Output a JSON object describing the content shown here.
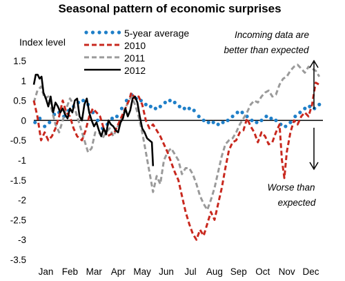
{
  "chart_data": {
    "type": "line",
    "title": "Seasonal pattern of economic surprises",
    "ylabel": "Index level",
    "xlabel": "",
    "ylim": [
      -3.5,
      1.5
    ],
    "y_ticks": [
      "1.5",
      "1",
      "0.5",
      "0",
      "-0.5",
      "-1",
      "-1.5",
      "-2",
      "-2.5",
      "-3",
      "-3.5"
    ],
    "y_tick_values": [
      1.5,
      1,
      0.5,
      0,
      -0.5,
      -1,
      -1.5,
      -2,
      -2.5,
      -3,
      -3.5
    ],
    "x_unit": "month (1 = start of Jan, 13 = end of Dec)",
    "xlim": [
      1,
      13
    ],
    "categories": [
      "Jan",
      "Feb",
      "Mar",
      "Apr",
      "May",
      "Jun",
      "Jul",
      "Aug",
      "Sep",
      "Oct",
      "Nov",
      "Dec"
    ],
    "legend_position": "top-center",
    "annotations": {
      "better": [
        "Incoming data are",
        "better than expected"
      ],
      "worse": [
        "Worse than",
        "expected"
      ]
    },
    "series": [
      {
        "name": "5-year average",
        "color": "#1f7fc8",
        "style": "dots",
        "points": [
          [
            1.05,
            -0.05
          ],
          [
            1.25,
            0.05
          ],
          [
            1.45,
            -0.15
          ],
          [
            1.65,
            -0.05
          ],
          [
            1.85,
            0.15
          ],
          [
            2.05,
            0.2
          ],
          [
            2.25,
            0.1
          ],
          [
            2.45,
            0.25
          ],
          [
            2.65,
            0.35
          ],
          [
            2.85,
            0.45
          ],
          [
            3.05,
            0.5
          ],
          [
            3.25,
            0.4
          ],
          [
            3.45,
            0.2
          ],
          [
            3.65,
            0.0
          ],
          [
            3.85,
            -0.2
          ],
          [
            4.05,
            -0.1
          ],
          [
            4.25,
            0.05
          ],
          [
            4.45,
            0.1
          ],
          [
            4.65,
            0.3
          ],
          [
            4.85,
            0.5
          ],
          [
            5.05,
            0.65
          ],
          [
            5.25,
            0.55
          ],
          [
            5.45,
            0.5
          ],
          [
            5.65,
            0.4
          ],
          [
            5.85,
            0.35
          ],
          [
            6.05,
            0.3
          ],
          [
            6.25,
            0.35
          ],
          [
            6.45,
            0.45
          ],
          [
            6.65,
            0.5
          ],
          [
            6.85,
            0.45
          ],
          [
            7.05,
            0.35
          ],
          [
            7.25,
            0.3
          ],
          [
            7.45,
            0.3
          ],
          [
            7.65,
            0.25
          ],
          [
            7.85,
            0.1
          ],
          [
            8.05,
            0.0
          ],
          [
            8.25,
            -0.05
          ],
          [
            8.45,
            -0.05
          ],
          [
            8.65,
            -0.1
          ],
          [
            8.85,
            -0.05
          ],
          [
            9.05,
            0.0
          ],
          [
            9.25,
            0.1
          ],
          [
            9.45,
            0.2
          ],
          [
            9.65,
            0.2
          ],
          [
            9.85,
            0.1
          ],
          [
            10.05,
            0.0
          ],
          [
            10.25,
            -0.05
          ],
          [
            10.45,
            0.0
          ],
          [
            10.65,
            0.1
          ],
          [
            10.85,
            0.05
          ],
          [
            11.05,
            0.0
          ],
          [
            11.25,
            -0.1
          ],
          [
            11.45,
            -0.15
          ],
          [
            11.65,
            -0.05
          ],
          [
            11.85,
            0.1
          ],
          [
            12.05,
            0.2
          ],
          [
            12.25,
            0.3
          ],
          [
            12.45,
            0.35
          ],
          [
            12.65,
            0.3
          ],
          [
            12.85,
            0.4
          ]
        ]
      },
      {
        "name": "2010",
        "color": "#c8281e",
        "style": "dashed",
        "points": [
          [
            1.0,
            0.5
          ],
          [
            1.15,
            0.1
          ],
          [
            1.3,
            -0.5
          ],
          [
            1.45,
            -0.3
          ],
          [
            1.6,
            -0.5
          ],
          [
            1.75,
            -0.4
          ],
          [
            1.9,
            -0.2
          ],
          [
            2.05,
            0.1
          ],
          [
            2.2,
            0.5
          ],
          [
            2.35,
            0.2
          ],
          [
            2.5,
            0.1
          ],
          [
            2.65,
            -0.2
          ],
          [
            2.8,
            -0.4
          ],
          [
            3.0,
            -0.5
          ],
          [
            3.15,
            -0.25
          ],
          [
            3.3,
            0.1
          ],
          [
            3.45,
            0.3
          ],
          [
            3.6,
            0.2
          ],
          [
            3.75,
            0.1
          ],
          [
            3.9,
            -0.2
          ],
          [
            4.05,
            -0.4
          ],
          [
            4.2,
            -0.35
          ],
          [
            4.35,
            -0.3
          ],
          [
            4.5,
            -0.1
          ],
          [
            4.65,
            0.1
          ],
          [
            4.8,
            0.3
          ],
          [
            4.95,
            0.5
          ],
          [
            5.05,
            0.7
          ],
          [
            5.2,
            0.55
          ],
          [
            5.35,
            0.6
          ],
          [
            5.5,
            0.4
          ],
          [
            5.65,
            0.0
          ],
          [
            5.8,
            -0.2
          ],
          [
            5.95,
            -0.1
          ],
          [
            6.1,
            -0.25
          ],
          [
            6.25,
            -0.4
          ],
          [
            6.4,
            -0.6
          ],
          [
            6.55,
            -0.8
          ],
          [
            6.7,
            -1.05
          ],
          [
            6.85,
            -1.3
          ],
          [
            7.0,
            -1.5
          ],
          [
            7.15,
            -1.9
          ],
          [
            7.3,
            -2.3
          ],
          [
            7.45,
            -2.6
          ],
          [
            7.6,
            -2.85
          ],
          [
            7.75,
            -3.0
          ],
          [
            7.9,
            -2.75
          ],
          [
            8.05,
            -2.9
          ],
          [
            8.2,
            -2.6
          ],
          [
            8.35,
            -2.3
          ],
          [
            8.5,
            -2.5
          ],
          [
            8.65,
            -2.1
          ],
          [
            8.8,
            -1.7
          ],
          [
            8.95,
            -1.2
          ],
          [
            9.1,
            -0.75
          ],
          [
            9.25,
            -0.55
          ],
          [
            9.4,
            -0.5
          ],
          [
            9.55,
            -0.3
          ],
          [
            9.7,
            -0.25
          ],
          [
            9.85,
            0.05
          ],
          [
            10.0,
            -0.15
          ],
          [
            10.15,
            -0.3
          ],
          [
            10.3,
            -0.55
          ],
          [
            10.45,
            -0.3
          ],
          [
            10.6,
            -0.4
          ],
          [
            10.75,
            -0.6
          ],
          [
            10.9,
            -0.55
          ],
          [
            11.05,
            -0.3
          ],
          [
            11.2,
            -0.1
          ],
          [
            11.3,
            -1.0
          ],
          [
            11.4,
            -1.45
          ],
          [
            11.5,
            -0.8
          ],
          [
            11.65,
            -0.3
          ],
          [
            11.8,
            0.0
          ],
          [
            11.95,
            -0.1
          ],
          [
            12.1,
            0.1
          ],
          [
            12.25,
            0.2
          ],
          [
            12.4,
            0.1
          ],
          [
            12.55,
            0.4
          ],
          [
            12.7,
            0.95
          ],
          [
            12.85,
            0.9
          ]
        ]
      },
      {
        "name": "2011",
        "color": "#9a9a9a",
        "style": "dashed",
        "points": [
          [
            1.0,
            0.45
          ],
          [
            1.15,
            0.75
          ],
          [
            1.3,
            0.85
          ],
          [
            1.45,
            0.55
          ],
          [
            1.6,
            0.6
          ],
          [
            1.75,
            0.25
          ],
          [
            1.9,
            -0.1
          ],
          [
            2.05,
            -0.3
          ],
          [
            2.2,
            0.0
          ],
          [
            2.35,
            0.3
          ],
          [
            2.5,
            0.55
          ],
          [
            2.65,
            0.4
          ],
          [
            2.8,
            0.1
          ],
          [
            2.95,
            -0.2
          ],
          [
            3.1,
            -0.5
          ],
          [
            3.25,
            -0.8
          ],
          [
            3.4,
            -0.7
          ],
          [
            3.55,
            -0.3
          ],
          [
            3.7,
            -0.3
          ],
          [
            3.85,
            -0.45
          ],
          [
            4.0,
            -0.3
          ],
          [
            4.15,
            -0.2
          ],
          [
            4.3,
            -0.4
          ],
          [
            4.45,
            -0.2
          ],
          [
            4.6,
            0.0
          ],
          [
            4.75,
            0.2
          ],
          [
            4.9,
            0.45
          ],
          [
            5.05,
            0.6
          ],
          [
            5.2,
            0.4
          ],
          [
            5.35,
            0.1
          ],
          [
            5.5,
            -0.3
          ],
          [
            5.65,
            -0.8
          ],
          [
            5.8,
            -1.3
          ],
          [
            5.95,
            -1.8
          ],
          [
            6.1,
            -1.4
          ],
          [
            6.25,
            -1.6
          ],
          [
            6.4,
            -1.0
          ],
          [
            6.55,
            -0.8
          ],
          [
            6.7,
            -0.7
          ],
          [
            6.85,
            -0.85
          ],
          [
            7.0,
            -1.0
          ],
          [
            7.15,
            -1.35
          ],
          [
            7.3,
            -1.2
          ],
          [
            7.45,
            -1.2
          ],
          [
            7.6,
            -1.35
          ],
          [
            7.75,
            -1.6
          ],
          [
            7.9,
            -1.9
          ],
          [
            8.05,
            -2.1
          ],
          [
            8.2,
            -2.25
          ],
          [
            8.35,
            -2.0
          ],
          [
            8.5,
            -1.7
          ],
          [
            8.65,
            -1.3
          ],
          [
            8.8,
            -0.9
          ],
          [
            8.95,
            -0.6
          ],
          [
            9.1,
            -0.5
          ],
          [
            9.25,
            -0.45
          ],
          [
            9.4,
            -0.3
          ],
          [
            9.55,
            -0.1
          ],
          [
            9.7,
            0.05
          ],
          [
            9.85,
            0.2
          ],
          [
            10.0,
            0.4
          ],
          [
            10.15,
            0.5
          ],
          [
            10.3,
            0.45
          ],
          [
            10.45,
            0.6
          ],
          [
            10.6,
            0.7
          ],
          [
            10.75,
            0.75
          ],
          [
            10.9,
            0.6
          ],
          [
            11.05,
            0.65
          ],
          [
            11.2,
            0.9
          ],
          [
            11.35,
            1.05
          ],
          [
            11.5,
            1.1
          ],
          [
            11.65,
            1.25
          ],
          [
            11.8,
            1.35
          ],
          [
            11.95,
            1.4
          ],
          [
            12.1,
            1.3
          ],
          [
            12.25,
            1.2
          ],
          [
            12.4,
            1.35
          ],
          [
            12.55,
            1.3
          ],
          [
            12.7,
            1.25
          ],
          [
            12.85,
            1.1
          ]
        ]
      },
      {
        "name": "2012",
        "color": "#000000",
        "style": "solid",
        "points": [
          [
            1.0,
            0.9
          ],
          [
            1.08,
            1.15
          ],
          [
            1.16,
            1.15
          ],
          [
            1.24,
            1.05
          ],
          [
            1.32,
            1.1
          ],
          [
            1.4,
            0.7
          ],
          [
            1.5,
            0.55
          ],
          [
            1.6,
            0.35
          ],
          [
            1.7,
            0.6
          ],
          [
            1.8,
            0.2
          ],
          [
            1.9,
            0.45
          ],
          [
            2.0,
            0.35
          ],
          [
            2.1,
            0.2
          ],
          [
            2.2,
            0.3
          ],
          [
            2.3,
            0.15
          ],
          [
            2.4,
            0.05
          ],
          [
            2.5,
            0.3
          ],
          [
            2.6,
            0.2
          ],
          [
            2.7,
            0.5
          ],
          [
            2.8,
            0.55
          ],
          [
            2.9,
            0.1
          ],
          [
            3.0,
            0.0
          ],
          [
            3.1,
            0.4
          ],
          [
            3.2,
            0.55
          ],
          [
            3.3,
            0.2
          ],
          [
            3.4,
            0.0
          ],
          [
            3.5,
            -0.15
          ],
          [
            3.6,
            -0.05
          ],
          [
            3.7,
            -0.25
          ],
          [
            3.8,
            -0.4
          ],
          [
            3.9,
            -0.2
          ],
          [
            4.0,
            -0.35
          ],
          [
            4.1,
            0.0
          ],
          [
            4.2,
            -0.1
          ],
          [
            4.3,
            -0.15
          ],
          [
            4.4,
            -0.25
          ],
          [
            4.5,
            -0.3
          ],
          [
            4.6,
            -0.05
          ],
          [
            4.7,
            0.05
          ],
          [
            4.8,
            0.3
          ],
          [
            4.9,
            0.1
          ],
          [
            5.0,
            0.25
          ],
          [
            5.1,
            0.55
          ],
          [
            5.2,
            0.6
          ],
          [
            5.3,
            0.45
          ],
          [
            5.4,
            0.1
          ],
          [
            5.5,
            -0.2
          ],
          [
            5.6,
            -0.3
          ],
          [
            5.7,
            -0.45
          ],
          [
            5.8,
            -0.5
          ],
          [
            5.9,
            -0.55
          ],
          [
            5.95,
            -1.15
          ]
        ]
      }
    ]
  }
}
